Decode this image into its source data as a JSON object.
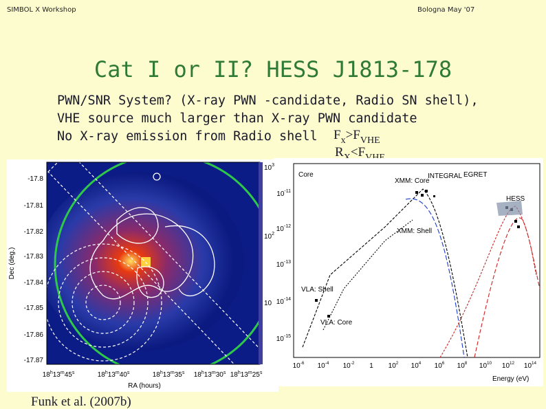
{
  "header": {
    "left": "SIMBOL X Workshop",
    "right": "Bologna May '07"
  },
  "title": "Cat I or II? HESS J1813-178",
  "body": [
    "PWN/SNR System? (X-ray PWN -candidate, Radio SN shell),",
    "VHE source much larger than X-ray PWN candidate",
    "No X-ray emission from Radio shell"
  ],
  "relations": [
    {
      "lhs": "F",
      "lhs_sub": "x",
      "op_rhs": ">F",
      "rhs_sub": "VHE"
    },
    {
      "lhs": "R",
      "lhs_sub": "X",
      "op_rhs": "<F",
      "rhs_sub": "VHE"
    }
  ],
  "sky_map": {
    "y_label": "Dec (deg.)",
    "x_label": "RA (hours)",
    "y_ticks": [
      "-17.8",
      "-17.81",
      "-17.82",
      "-17.83",
      "-17.84",
      "-17.85",
      "-17.86",
      "-17.87"
    ],
    "x_ticks": [
      [
        [
          "18",
          "h"
        ],
        [
          "13",
          "m"
        ],
        [
          "45",
          "s"
        ]
      ],
      [
        [
          "18",
          "h"
        ],
        [
          "13",
          "m"
        ],
        [
          "40",
          "s"
        ]
      ],
      [
        [
          "18",
          "h"
        ],
        [
          "13",
          "m"
        ],
        [
          "35",
          "s"
        ]
      ],
      [
        [
          "18",
          "h"
        ],
        [
          "13",
          "m"
        ],
        [
          "30",
          "s"
        ]
      ],
      [
        [
          "18",
          "h"
        ],
        [
          "13",
          "m"
        ],
        [
          "25",
          "s"
        ]
      ]
    ],
    "colorbar_ticks": [
      {
        "base": "10",
        "exp": "3"
      },
      {
        "base": "10",
        "exp": "2"
      },
      {
        "base": "10",
        "exp": ""
      }
    ]
  },
  "sed": {
    "labels": {
      "core": "Core",
      "xmm_core": "XMM: Core",
      "integral": "INTEGRAL",
      "egret": "EGRET",
      "hess": "HESS",
      "xmm_shell": "XMM: Shell",
      "vla_shell": "VLA: Shell",
      "vla_core": "VLA: Core"
    },
    "x_label": "Energy (eV)",
    "y_ticks": [
      {
        "base": "10",
        "exp": "-11"
      },
      {
        "base": "10",
        "exp": "-12"
      },
      {
        "base": "10",
        "exp": "-13"
      },
      {
        "base": "10",
        "exp": "-14"
      },
      {
        "base": "10",
        "exp": "-15"
      }
    ],
    "x_ticks": [
      {
        "base": "10",
        "exp": "-6"
      },
      {
        "base": "10",
        "exp": "-4"
      },
      {
        "base": "10",
        "exp": "-2"
      },
      {
        "base": "1",
        "exp": ""
      },
      {
        "base": "10",
        "exp": "2"
      },
      {
        "base": "10",
        "exp": "4"
      },
      {
        "base": "10",
        "exp": "6"
      },
      {
        "base": "10",
        "exp": "8"
      },
      {
        "base": "10",
        "exp": "10"
      },
      {
        "base": "10",
        "exp": "12"
      },
      {
        "base": "10",
        "exp": "14"
      }
    ]
  },
  "citation": "Funk et al. (2007b)"
}
